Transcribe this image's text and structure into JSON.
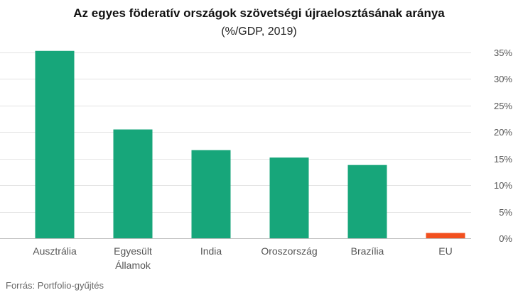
{
  "chart_data": {
    "type": "bar",
    "title": "Az egyes föderatív országok szövetségi újraelosztásának aránya",
    "subtitle": "(%/GDP, 2019)",
    "categories": [
      [
        "Ausztrália"
      ],
      [
        "Egyesült",
        "Államok"
      ],
      [
        "India"
      ],
      [
        "Oroszország"
      ],
      [
        "Brazília"
      ],
      [
        "EU"
      ]
    ],
    "values": [
      35.3,
      20.5,
      16.6,
      15.2,
      13.8,
      1.0
    ],
    "bar_colors": [
      "#17a67a",
      "#17a67a",
      "#17a67a",
      "#17a67a",
      "#17a67a",
      "#f2501f"
    ],
    "y_ticks": [
      0,
      5,
      10,
      15,
      20,
      25,
      30,
      35
    ],
    "y_tick_labels": [
      "0%",
      "5%",
      "10%",
      "15%",
      "20%",
      "25%",
      "30%",
      "35%"
    ],
    "ylim": [
      0,
      35
    ],
    "y_axis_side": "right",
    "grid": true,
    "xlabel": "",
    "ylabel": ""
  },
  "source": "Forrás: Portfolio-gyűjtés"
}
